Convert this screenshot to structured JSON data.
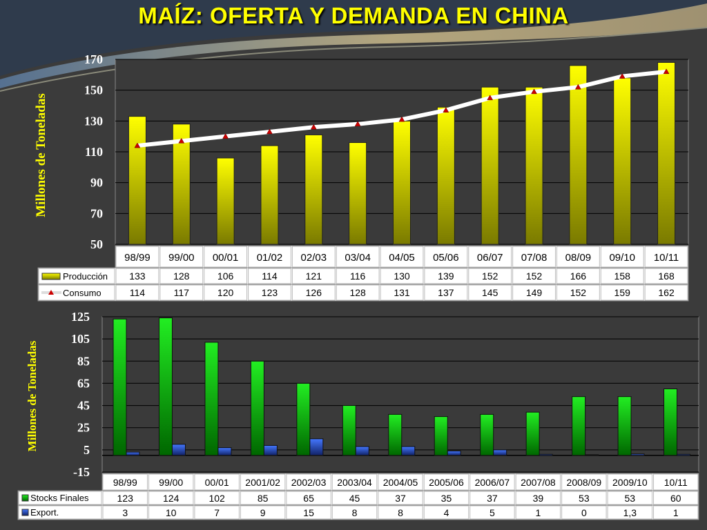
{
  "title": "MAÍZ: OFERTA Y DEMANDA EN CHINA",
  "colors": {
    "background": "#3b3b3b",
    "title": "#ffff00",
    "production_bar": "#ffff00",
    "consumption_line": "#ffffff",
    "consumption_marker": "#cc0000",
    "stocks_bar": "#00cc00",
    "exports_bar": "#2255dd"
  },
  "chart_data": [
    {
      "type": "bar",
      "ylabel": "Millones de Toneladas",
      "ylim": [
        50,
        170
      ],
      "yticks": [
        50,
        70,
        90,
        110,
        130,
        150,
        170
      ],
      "grid": true,
      "legend": "table-left",
      "categories": [
        "98/99",
        "99/00",
        "00/01",
        "01/02",
        "02/03",
        "03/04",
        "04/05",
        "05/06",
        "06/07",
        "07/08",
        "08/09",
        "09/10",
        "10/11"
      ],
      "series": [
        {
          "name": "Producción",
          "type": "bar",
          "values": [
            133,
            128,
            106,
            114,
            121,
            116,
            130,
            139,
            152,
            152,
            166,
            158,
            168
          ]
        },
        {
          "name": "Consumo",
          "type": "line",
          "values": [
            114,
            117,
            120,
            123,
            126,
            128,
            131,
            137,
            145,
            149,
            152,
            159,
            162
          ]
        }
      ],
      "table": {
        "Producción": [
          "133",
          "128",
          "106",
          "114",
          "121",
          "116",
          "130",
          "139",
          "152",
          "152",
          "166",
          "158",
          "168"
        ],
        "Consumo": [
          "114",
          "117",
          "120",
          "123",
          "126",
          "128",
          "131",
          "137",
          "145",
          "149",
          "152",
          "159",
          "162"
        ]
      }
    },
    {
      "type": "bar",
      "ylabel": "Millones de Toneladas",
      "ylim": [
        -15,
        125
      ],
      "yticks": [
        -15,
        5,
        25,
        45,
        65,
        85,
        105,
        125
      ],
      "grid": true,
      "legend": "table-left",
      "categories": [
        "98/99",
        "99/00",
        "00/01",
        "2001/02",
        "2002/03",
        "2003/04",
        "2004/05",
        "2005/06",
        "2006/07",
        "2007/08",
        "2008/09",
        "2009/10",
        "10/11"
      ],
      "series": [
        {
          "name": "Stocks Finales",
          "values": [
            123,
            124,
            102,
            85,
            65,
            45,
            37,
            35,
            37,
            39,
            53,
            53,
            60
          ]
        },
        {
          "name": "Export.",
          "values": [
            3,
            10,
            7,
            9,
            15,
            8,
            8,
            4,
            5,
            1,
            0,
            1.3,
            1
          ]
        }
      ],
      "table": {
        "Stocks Finales": [
          "123",
          "124",
          "102",
          "85",
          "65",
          "45",
          "37",
          "35",
          "37",
          "39",
          "53",
          "53",
          "60"
        ],
        "Export.": [
          "3",
          "10",
          "7",
          "9",
          "15",
          "8",
          "8",
          "4",
          "5",
          "1",
          "0",
          "1,3",
          "1"
        ]
      }
    }
  ]
}
